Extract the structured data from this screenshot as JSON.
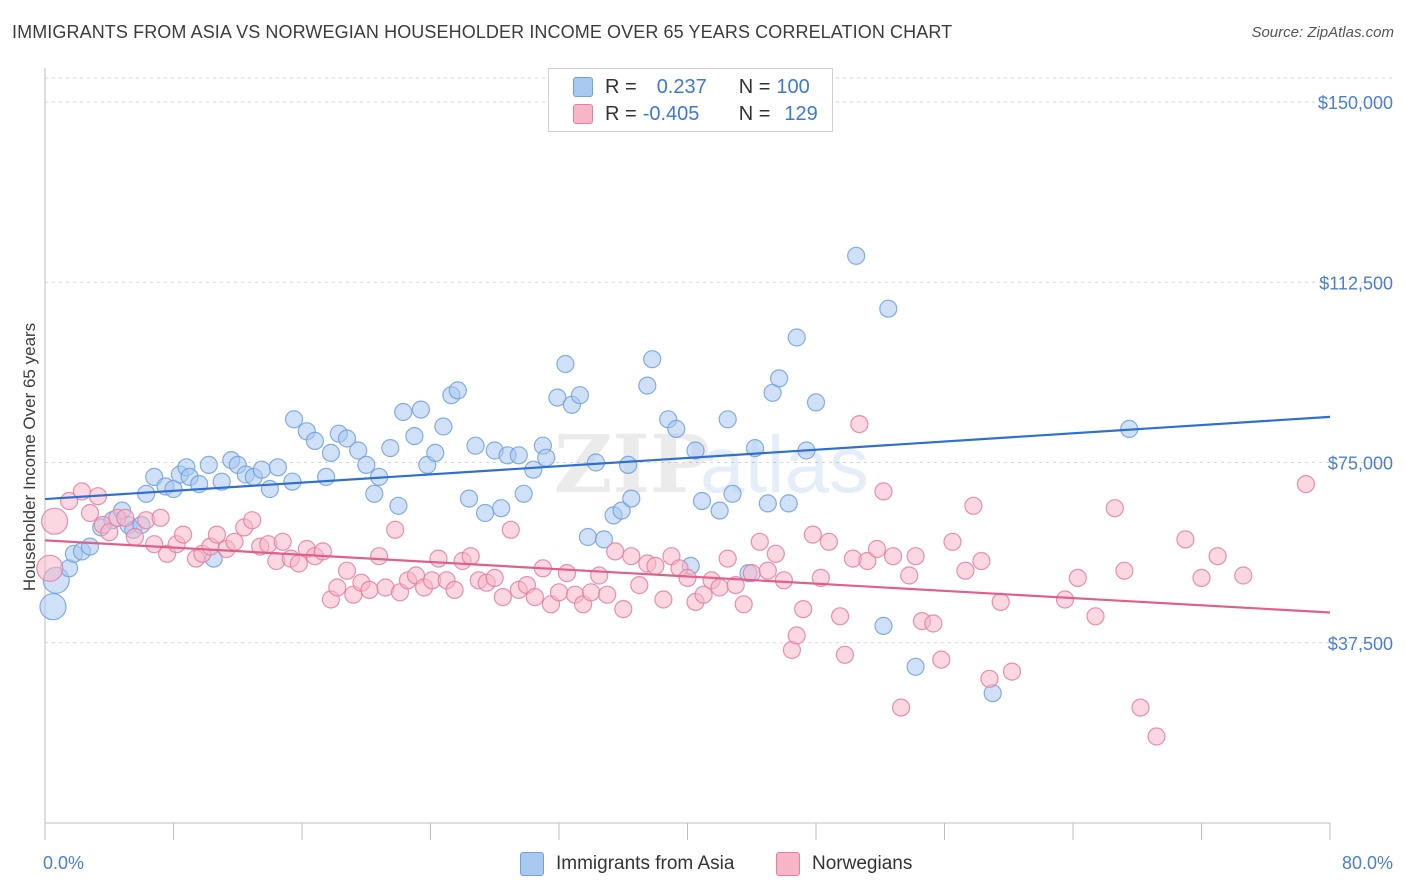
{
  "title": "IMMIGRANTS FROM ASIA VS NORWEGIAN HOUSEHOLDER INCOME OVER 65 YEARS CORRELATION CHART",
  "source": "Source: ZipAtlas.com",
  "watermark": "ZIPatlas",
  "legend": {
    "rows": [
      {
        "r_label": "R =",
        "r_value": "0.237",
        "n_label": "N =",
        "n_value": "100",
        "color": "#a9c8f0"
      },
      {
        "r_label": "R =",
        "r_value": "-0.405",
        "n_label": "N =",
        "n_value": "129",
        "color": "#f6b6c8"
      }
    ]
  },
  "bottom_legend": [
    {
      "label": "Immigrants from Asia",
      "color": "#a9c8f0"
    },
    {
      "label": "Norwegians",
      "color": "#f6b6c8"
    }
  ],
  "chart_data": {
    "type": "scatter",
    "title": "IMMIGRANTS FROM ASIA VS NORWEGIAN HOUSEHOLDER INCOME OVER 65 YEARS CORRELATION CHART",
    "xlabel": "",
    "ylabel": "Householder Income Over 65 years",
    "x_tick_labels": [
      "0.0%",
      "80.0%"
    ],
    "y_tick_labels": [
      "$37,500",
      "$75,000",
      "$112,500",
      "$150,000"
    ],
    "y_ticks": [
      37500,
      75000,
      112500,
      150000
    ],
    "xlim": [
      0,
      80
    ],
    "ylim": [
      0,
      155000
    ],
    "grid": true,
    "legend_position": "top-center",
    "series": [
      {
        "name": "Immigrants from Asia",
        "color": "#6fa0e0",
        "fill": "#a9c8f0",
        "trend": {
          "x": [
            0,
            80
          ],
          "y": [
            67400,
            84500
          ]
        },
        "points": [
          [
            0.5,
            45000
          ],
          [
            0.7,
            50500
          ],
          [
            1.5,
            53000
          ],
          [
            1.8,
            56000
          ],
          [
            2.3,
            56500
          ],
          [
            2.8,
            57500
          ],
          [
            3.5,
            61500
          ],
          [
            4.2,
            63000
          ],
          [
            4.8,
            65000
          ],
          [
            5.2,
            62000
          ],
          [
            5.5,
            61000
          ],
          [
            6.0,
            62000
          ],
          [
            6.3,
            68500
          ],
          [
            6.8,
            72000
          ],
          [
            7.5,
            70000
          ],
          [
            8.0,
            69500
          ],
          [
            8.4,
            72500
          ],
          [
            8.8,
            74000
          ],
          [
            9.0,
            72000
          ],
          [
            9.6,
            70500
          ],
          [
            10.2,
            74500
          ],
          [
            10.5,
            55000
          ],
          [
            11.0,
            71000
          ],
          [
            11.6,
            75500
          ],
          [
            12.0,
            74500
          ],
          [
            12.5,
            72500
          ],
          [
            13.0,
            72000
          ],
          [
            13.5,
            73500
          ],
          [
            14.0,
            69500
          ],
          [
            14.5,
            74000
          ],
          [
            15.4,
            71000
          ],
          [
            15.5,
            84000
          ],
          [
            16.3,
            81500
          ],
          [
            16.8,
            79500
          ],
          [
            17.5,
            72000
          ],
          [
            17.8,
            77000
          ],
          [
            18.3,
            81000
          ],
          [
            18.8,
            80000
          ],
          [
            19.5,
            77500
          ],
          [
            20.0,
            74500
          ],
          [
            20.5,
            68500
          ],
          [
            20.8,
            72000
          ],
          [
            21.5,
            78000
          ],
          [
            22.0,
            66000
          ],
          [
            22.3,
            85500
          ],
          [
            23.0,
            80500
          ],
          [
            23.4,
            86000
          ],
          [
            23.8,
            74500
          ],
          [
            24.3,
            77000
          ],
          [
            24.8,
            82500
          ],
          [
            25.3,
            89000
          ],
          [
            25.7,
            90000
          ],
          [
            26.4,
            67500
          ],
          [
            26.8,
            78500
          ],
          [
            27.4,
            64500
          ],
          [
            28.0,
            77500
          ],
          [
            28.4,
            65500
          ],
          [
            28.8,
            76500
          ],
          [
            29.5,
            76500
          ],
          [
            29.8,
            68500
          ],
          [
            30.4,
            73500
          ],
          [
            31.0,
            78500
          ],
          [
            31.2,
            76000
          ],
          [
            31.9,
            88500
          ],
          [
            32.4,
            95500
          ],
          [
            32.8,
            87000
          ],
          [
            33.3,
            89000
          ],
          [
            33.8,
            59500
          ],
          [
            34.3,
            75000
          ],
          [
            34.8,
            59000
          ],
          [
            35.4,
            64000
          ],
          [
            35.9,
            65000
          ],
          [
            36.3,
            74500
          ],
          [
            36.5,
            67500
          ],
          [
            37.5,
            91000
          ],
          [
            37.8,
            96500
          ],
          [
            38.8,
            84000
          ],
          [
            39.3,
            82000
          ],
          [
            40.2,
            53500
          ],
          [
            40.5,
            77500
          ],
          [
            40.9,
            67000
          ],
          [
            42.0,
            65000
          ],
          [
            42.5,
            84000
          ],
          [
            42.8,
            68500
          ],
          [
            43.8,
            52000
          ],
          [
            44.2,
            78000
          ],
          [
            45.0,
            66500
          ],
          [
            45.3,
            89500
          ],
          [
            45.7,
            92500
          ],
          [
            46.3,
            66500
          ],
          [
            46.8,
            101000
          ],
          [
            47.4,
            77500
          ],
          [
            48.0,
            87500
          ],
          [
            50.5,
            118000
          ],
          [
            52.2,
            41000
          ],
          [
            52.5,
            107000
          ],
          [
            54.2,
            32500
          ],
          [
            59.0,
            27000
          ],
          [
            67.5,
            82000
          ]
        ]
      },
      {
        "name": "Norwegians",
        "color": "#e87ca0",
        "fill": "#f6b6c8",
        "trend": {
          "x": [
            0,
            80
          ],
          "y": [
            58800,
            43800
          ]
        },
        "points": [
          [
            0.3,
            53000
          ],
          [
            0.6,
            62800
          ],
          [
            1.5,
            67000
          ],
          [
            2.3,
            69000
          ],
          [
            2.8,
            64500
          ],
          [
            3.3,
            68000
          ],
          [
            3.6,
            62000
          ],
          [
            4.0,
            60500
          ],
          [
            4.5,
            63500
          ],
          [
            5.0,
            63500
          ],
          [
            5.6,
            59500
          ],
          [
            6.3,
            63000
          ],
          [
            6.8,
            58000
          ],
          [
            7.2,
            63500
          ],
          [
            7.6,
            56000
          ],
          [
            8.2,
            58000
          ],
          [
            8.6,
            60000
          ],
          [
            9.4,
            55000
          ],
          [
            9.8,
            56000
          ],
          [
            10.3,
            57500
          ],
          [
            10.7,
            60000
          ],
          [
            11.3,
            57000
          ],
          [
            11.8,
            58500
          ],
          [
            12.4,
            61500
          ],
          [
            12.9,
            63000
          ],
          [
            13.4,
            57500
          ],
          [
            13.9,
            58000
          ],
          [
            14.4,
            54500
          ],
          [
            14.8,
            58500
          ],
          [
            15.3,
            55000
          ],
          [
            15.8,
            54000
          ],
          [
            16.3,
            57000
          ],
          [
            16.8,
            55500
          ],
          [
            17.3,
            56500
          ],
          [
            17.8,
            46500
          ],
          [
            18.2,
            49000
          ],
          [
            18.8,
            52500
          ],
          [
            19.2,
            47500
          ],
          [
            19.7,
            50000
          ],
          [
            20.2,
            48500
          ],
          [
            20.8,
            55500
          ],
          [
            21.2,
            49000
          ],
          [
            21.8,
            61000
          ],
          [
            22.1,
            48000
          ],
          [
            22.6,
            50500
          ],
          [
            23.1,
            51500
          ],
          [
            23.6,
            49000
          ],
          [
            24.1,
            50500
          ],
          [
            24.5,
            55000
          ],
          [
            25.0,
            50500
          ],
          [
            25.5,
            48500
          ],
          [
            26.0,
            54500
          ],
          [
            26.5,
            55500
          ],
          [
            27.0,
            50500
          ],
          [
            27.5,
            50000
          ],
          [
            28.0,
            51000
          ],
          [
            28.5,
            47000
          ],
          [
            29.0,
            61000
          ],
          [
            29.5,
            48500
          ],
          [
            30.0,
            49500
          ],
          [
            30.5,
            47000
          ],
          [
            31.0,
            53000
          ],
          [
            31.5,
            45500
          ],
          [
            32.0,
            48000
          ],
          [
            32.5,
            52000
          ],
          [
            33.0,
            47500
          ],
          [
            33.5,
            45500
          ],
          [
            34.0,
            48000
          ],
          [
            34.5,
            51500
          ],
          [
            35.0,
            47500
          ],
          [
            35.5,
            56500
          ],
          [
            36.0,
            44500
          ],
          [
            36.5,
            55500
          ],
          [
            37.0,
            49500
          ],
          [
            37.5,
            54000
          ],
          [
            38.0,
            53500
          ],
          [
            38.5,
            46500
          ],
          [
            39.0,
            55500
          ],
          [
            39.5,
            53000
          ],
          [
            40.0,
            51000
          ],
          [
            40.5,
            46000
          ],
          [
            41.0,
            47500
          ],
          [
            41.5,
            50500
          ],
          [
            42.0,
            49000
          ],
          [
            42.5,
            55000
          ],
          [
            43.0,
            49500
          ],
          [
            43.5,
            45500
          ],
          [
            44.0,
            52000
          ],
          [
            44.5,
            58500
          ],
          [
            45.0,
            52500
          ],
          [
            45.5,
            56000
          ],
          [
            46.0,
            50500
          ],
          [
            46.5,
            36000
          ],
          [
            46.8,
            39000
          ],
          [
            47.2,
            44500
          ],
          [
            47.8,
            60000
          ],
          [
            48.3,
            51000
          ],
          [
            48.8,
            58500
          ],
          [
            49.5,
            43000
          ],
          [
            49.8,
            35000
          ],
          [
            50.3,
            55000
          ],
          [
            50.7,
            83000
          ],
          [
            51.2,
            54500
          ],
          [
            51.8,
            57000
          ],
          [
            52.2,
            69000
          ],
          [
            52.8,
            55500
          ],
          [
            53.3,
            24000
          ],
          [
            53.8,
            51500
          ],
          [
            54.2,
            55500
          ],
          [
            54.6,
            42000
          ],
          [
            55.3,
            41500
          ],
          [
            55.8,
            34000
          ],
          [
            56.5,
            58500
          ],
          [
            57.3,
            52500
          ],
          [
            57.8,
            66000
          ],
          [
            58.3,
            54500
          ],
          [
            58.8,
            30000
          ],
          [
            59.5,
            46000
          ],
          [
            60.2,
            31500
          ],
          [
            63.5,
            46500
          ],
          [
            64.3,
            51000
          ],
          [
            65.4,
            43000
          ],
          [
            66.6,
            65500
          ],
          [
            67.2,
            52500
          ],
          [
            68.2,
            24000
          ],
          [
            69.2,
            18000
          ],
          [
            71.0,
            59000
          ],
          [
            72.0,
            51000
          ],
          [
            73.0,
            55500
          ],
          [
            74.6,
            51500
          ],
          [
            78.5,
            70500
          ]
        ]
      }
    ]
  }
}
